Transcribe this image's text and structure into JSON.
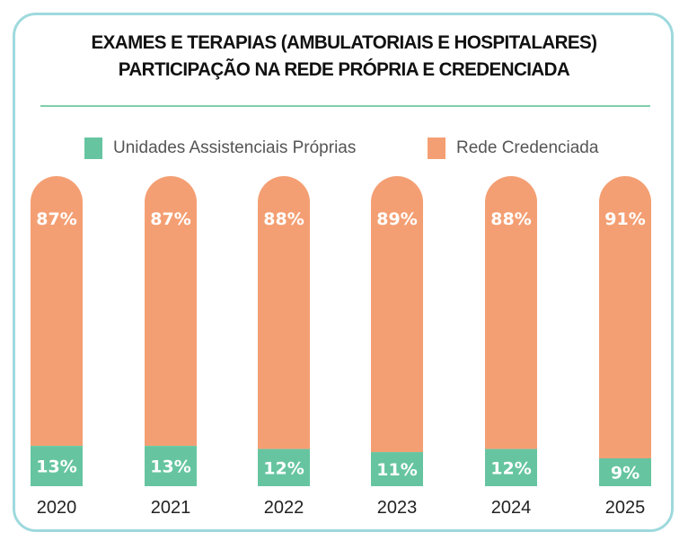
{
  "chart_data": {
    "type": "bar",
    "stacked": true,
    "title": "EXAMES E TERAPIAS (AMBULATORIAIS E HOSPITALARES)",
    "subtitle": "PARTICIPAÇÃO NA REDE PRÓPRIA E CREDENCIADA",
    "categories": [
      "2020",
      "2021",
      "2022",
      "2023",
      "2024",
      "2025"
    ],
    "series": [
      {
        "name": "Unidades Assistenciais Próprias",
        "color": "#66c5a0",
        "values": [
          13,
          13,
          12,
          11,
          12,
          9
        ],
        "labels": [
          "13%",
          "13%",
          "12%",
          "11%",
          "12%",
          "9%"
        ]
      },
      {
        "name": "Rede Credenciada",
        "color": "#f49f73",
        "values": [
          87,
          87,
          88,
          89,
          88,
          91
        ],
        "labels": [
          "87%",
          "87%",
          "88%",
          "89%",
          "88%",
          "91%"
        ]
      }
    ],
    "ylim": [
      0,
      100
    ],
    "legend": "top-center",
    "xlabel": "",
    "ylabel": ""
  }
}
